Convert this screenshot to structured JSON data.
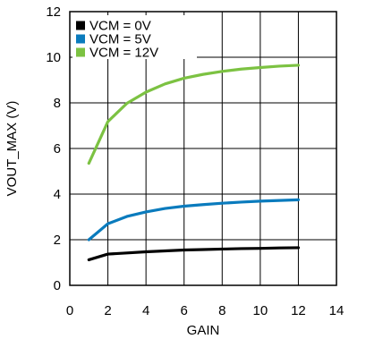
{
  "chart_data": {
    "type": "line",
    "title": "",
    "xlabel": "GAIN",
    "ylabel": "VOUT_MAX (V)",
    "xlim": [
      0,
      14
    ],
    "ylim": [
      0,
      12
    ],
    "x_ticks": [
      "0",
      "2",
      "4",
      "6",
      "8",
      "10",
      "12",
      "14"
    ],
    "y_ticks": [
      "0",
      "2",
      "4",
      "6",
      "8",
      "10",
      "12"
    ],
    "grid": true,
    "legend_position": "top-left",
    "series": [
      {
        "name": "VCM = 0V",
        "color": "#000000",
        "x": [
          1,
          2,
          3,
          4,
          5,
          6,
          7,
          8,
          9,
          10,
          11,
          12
        ],
        "y": [
          1.12,
          1.37,
          1.42,
          1.47,
          1.51,
          1.55,
          1.57,
          1.59,
          1.61,
          1.62,
          1.64,
          1.65
        ]
      },
      {
        "name": "VCM = 5V",
        "color": "#0a7bbd",
        "x": [
          1,
          2,
          3,
          4,
          5,
          6,
          7,
          8,
          9,
          10,
          11,
          12
        ],
        "y": [
          2.0,
          2.7,
          3.02,
          3.22,
          3.37,
          3.47,
          3.54,
          3.6,
          3.65,
          3.69,
          3.72,
          3.75
        ]
      },
      {
        "name": "VCM = 12V",
        "color": "#7cc242",
        "x": [
          1,
          2,
          3,
          4,
          5,
          6,
          7,
          8,
          9,
          10,
          11,
          12
        ],
        "y": [
          5.35,
          7.18,
          7.98,
          8.47,
          8.83,
          9.08,
          9.25,
          9.38,
          9.48,
          9.55,
          9.61,
          9.65
        ]
      }
    ]
  }
}
